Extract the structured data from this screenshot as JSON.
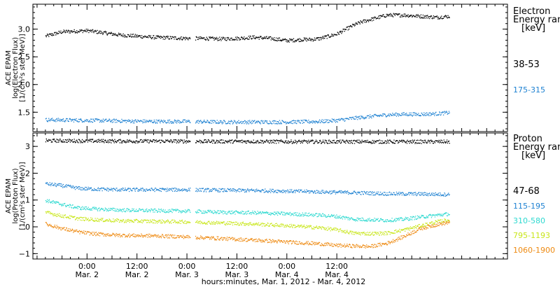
{
  "chart_data": [
    {
      "type": "scatter",
      "panel": "electron",
      "ylabel_lines": [
        "ACE EPAM",
        "log(Electron Flux)",
        "[1/(cm²s ster MeV)]"
      ],
      "ylim": [
        1.15,
        3.45
      ],
      "yticks": [
        1.5,
        2.0,
        2.5,
        3.0
      ],
      "ytick_labels": [
        "1.5",
        "2.0",
        "2.5",
        "3.0"
      ],
      "legend_title": [
        "Electron",
        "Energy ran",
        "[keV]"
      ],
      "series": [
        {
          "name": "38-53",
          "color": "#000000",
          "x": [
            -10,
            -6,
            0,
            4,
            8,
            12,
            16,
            20,
            24,
            28,
            32,
            36,
            40,
            44,
            48,
            52,
            54,
            56,
            58,
            60,
            62,
            64,
            66,
            68,
            70,
            72,
            76,
            80,
            84,
            87
          ],
          "y": [
            2.88,
            2.96,
            2.98,
            2.94,
            2.9,
            2.88,
            2.86,
            2.85,
            2.84,
            2.84,
            2.83,
            2.84,
            2.86,
            2.84,
            2.8,
            2.82,
            2.82,
            2.84,
            2.88,
            2.92,
            3.0,
            3.08,
            3.14,
            3.18,
            3.22,
            3.26,
            3.26,
            3.24,
            3.22,
            3.24
          ]
        },
        {
          "name": "175-315",
          "color": "#1f82d2",
          "x": [
            -10,
            0,
            8,
            16,
            24,
            32,
            40,
            48,
            56,
            60,
            64,
            68,
            72,
            76,
            80,
            84,
            87
          ],
          "y": [
            1.37,
            1.36,
            1.35,
            1.34,
            1.34,
            1.33,
            1.33,
            1.33,
            1.34,
            1.36,
            1.4,
            1.43,
            1.46,
            1.47,
            1.47,
            1.48,
            1.5
          ]
        }
      ]
    },
    {
      "type": "scatter",
      "panel": "proton",
      "ylabel_lines": [
        "ACE EPAM",
        "log(Proton Flux)",
        "[1/(cm²s ster MeV)]"
      ],
      "ylim": [
        -1.2,
        3.5
      ],
      "yticks": [
        -1,
        0,
        1,
        2,
        3
      ],
      "ytick_labels": [
        "−1",
        "0",
        "1",
        "2",
        "3"
      ],
      "legend_title": [
        "Proton",
        "Energy ran",
        "[keV]"
      ],
      "series": [
        {
          "name": "47-68",
          "color": "#000000",
          "x": [
            -10,
            0,
            10,
            20,
            30,
            40,
            50,
            60,
            70,
            80,
            87
          ],
          "y": [
            3.23,
            3.22,
            3.21,
            3.21,
            3.2,
            3.2,
            3.19,
            3.19,
            3.19,
            3.19,
            3.19
          ]
        },
        {
          "name": "115-195",
          "color": "#1f82d2",
          "x": [
            -10,
            -6,
            -2,
            2,
            8,
            16,
            24,
            32,
            40,
            48,
            56,
            64,
            72,
            80,
            87
          ],
          "y": [
            1.62,
            1.55,
            1.45,
            1.42,
            1.4,
            1.4,
            1.4,
            1.38,
            1.37,
            1.35,
            1.32,
            1.29,
            1.25,
            1.24,
            1.22
          ]
        },
        {
          "name": "310-580",
          "color": "#2ed9d0",
          "x": [
            -10,
            -6,
            -2,
            2,
            8,
            16,
            24,
            32,
            40,
            48,
            56,
            60,
            64,
            68,
            72,
            76,
            80,
            84,
            87
          ],
          "y": [
            1.0,
            0.85,
            0.72,
            0.68,
            0.64,
            0.62,
            0.6,
            0.56,
            0.54,
            0.5,
            0.45,
            0.4,
            0.3,
            0.28,
            0.26,
            0.3,
            0.38,
            0.45,
            0.5
          ]
        },
        {
          "name": "795-1193",
          "color": "#c8e619",
          "x": [
            -10,
            -6,
            -2,
            2,
            8,
            16,
            24,
            32,
            40,
            48,
            56,
            60,
            64,
            68,
            72,
            76,
            80,
            84,
            87
          ],
          "y": [
            0.55,
            0.42,
            0.32,
            0.28,
            0.24,
            0.22,
            0.2,
            0.16,
            0.12,
            0.06,
            -0.02,
            -0.1,
            -0.22,
            -0.24,
            -0.22,
            -0.1,
            0.05,
            0.2,
            0.28
          ]
        },
        {
          "name": "1060-1900",
          "color": "#ee8a12",
          "x": [
            -10,
            -6,
            -2,
            2,
            8,
            16,
            24,
            32,
            40,
            48,
            56,
            60,
            64,
            68,
            72,
            76,
            80,
            84,
            87
          ],
          "y": [
            0.12,
            -0.05,
            -0.18,
            -0.25,
            -0.3,
            -0.32,
            -0.36,
            -0.42,
            -0.48,
            -0.55,
            -0.62,
            -0.68,
            -0.7,
            -0.72,
            -0.6,
            -0.35,
            -0.05,
            0.1,
            0.18
          ]
        }
      ]
    }
  ],
  "x_axis": {
    "xlim": [
      -13,
      101
    ],
    "major_ticks": [
      0,
      12,
      24,
      36,
      48,
      60
    ],
    "tick_labels": [
      {
        "time": "0:00",
        "date": "Mar. 2"
      },
      {
        "time": "12:00",
        "date": "Mar. 2"
      },
      {
        "time": "0:00",
        "date": "Mar. 3"
      },
      {
        "time": "12:00",
        "date": "Mar. 3"
      },
      {
        "time": "0:00",
        "date": "Mar. 4"
      },
      {
        "time": "12:00",
        "date": "Mar. 4"
      }
    ],
    "xlabel": "hours:minutes, Mar.  1, 2012 - Mar.  4, 2012",
    "data_gap": [
      24.8,
      26.0
    ]
  }
}
